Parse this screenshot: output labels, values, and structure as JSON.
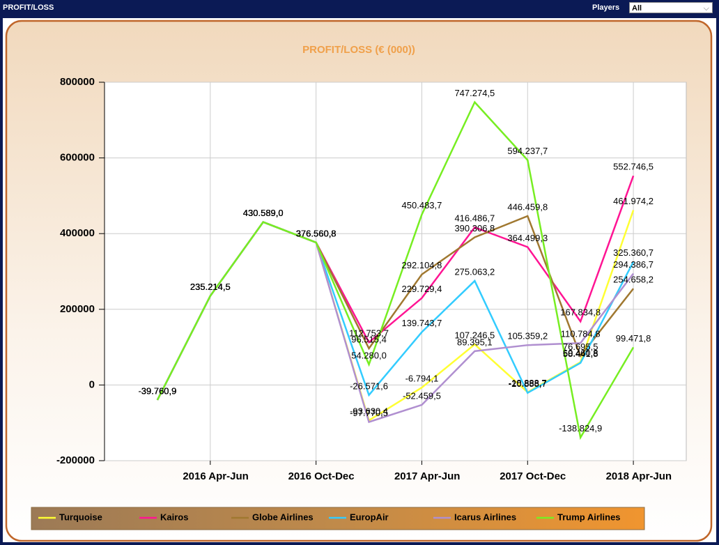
{
  "header": {
    "title": "PROFIT/LOSS",
    "filter_label": "Players",
    "filter_value": "All"
  },
  "chart_data": {
    "type": "line",
    "title": "PROFIT/LOSS (€ (000))",
    "categories": [
      null,
      "2016 Apr-Jun",
      null,
      "2016 Oct-Dec",
      null,
      "2017 Apr-Jun",
      null,
      "2017 Oct-Dec",
      null,
      "2018 Apr-Jun"
    ],
    "ylim": [
      -200000,
      800000
    ],
    "yticks": [
      -200000,
      0,
      200000,
      400000,
      600000,
      800000
    ],
    "grid": true,
    "legend": "bottom",
    "series": [
      {
        "name": "Turquoise",
        "color": "#ffff33",
        "values": [
          -39760.9,
          235214.5,
          430589.0,
          376560.8,
          -93630.4,
          -6794.1,
          107246.5,
          -18888.7,
          60460.8,
          461974.2
        ],
        "value_labels": [
          "-39.760,9",
          "235.214,5",
          "430.589,0",
          "376.560,8",
          "-93.630,4",
          "-6.794,1",
          "107.246,5",
          "-18.888,7",
          "60.460,8",
          "461.974,2"
        ]
      },
      {
        "name": "Kairos",
        "color": "#ff1493",
        "values": [
          -39760.9,
          235214.5,
          430589.0,
          376560.8,
          112753.7,
          229729.4,
          416486.7,
          364499.3,
          167834.8,
          552746.5
        ],
        "value_labels": [
          "-39.760,9",
          "235.214,5",
          "430.589,0",
          "376.560,8",
          "112.753,7",
          "229.729,4",
          "416.486,7",
          "364.499,3",
          "167.834,8",
          "552.746,5"
        ]
      },
      {
        "name": "Globe Airlines",
        "color": "#a07830",
        "values": [
          -39760.9,
          235214.5,
          430589.0,
          376560.8,
          96515.4,
          292104.8,
          390306.8,
          446459.8,
          76695.5,
          254658.2
        ],
        "value_labels": [
          "-39.760,9",
          "235.214,5",
          "430.589,0",
          "376.560,8",
          "96.515,4",
          "292.104,8",
          "390.306,8",
          "446.459,8",
          "76.695,5",
          "254.658,2"
        ]
      },
      {
        "name": "EuropAir",
        "color": "#33ccff",
        "values": [
          -39760.9,
          235214.5,
          430589.0,
          376560.8,
          -26571.6,
          139743.7,
          275063.2,
          -20888.7,
          58441.8,
          325360.7
        ],
        "value_labels": [
          "-39.760,9",
          "235.214,5",
          "430.589,0",
          "376.560,8",
          "-26.571,6",
          "139.743,7",
          "275.063,2",
          "-20.888,7",
          "58.441,8",
          "325.360,7"
        ]
      },
      {
        "name": "Icarus Airlines",
        "color": "#b08fd0",
        "values": [
          -39760.9,
          235214.5,
          430589.0,
          376560.8,
          -97770.5,
          -52459.5,
          89395.1,
          105359.2,
          110784.8,
          294386.7
        ],
        "value_labels": [
          "-39.760,9",
          "235.214,5",
          "430.589,0",
          "376.560,8",
          "-97.770,5",
          "-52.459,5",
          "89.395,1",
          "105.359,2",
          "110.784,8",
          "294.386,7"
        ]
      },
      {
        "name": "Trump Airlines",
        "color": "#77ee22",
        "values": [
          -39760.9,
          235214.5,
          430589.0,
          376560.8,
          54280.0,
          450483.7,
          747274.5,
          594237.7,
          -138824.9,
          99471.8
        ],
        "value_labels": [
          "-39.760,9",
          "235.214,5",
          "430.589,0",
          "376.560,8",
          "54.280,0",
          "450.483,7",
          "747.274,5",
          "594.237,7",
          "-138.824,9",
          "99.471,8"
        ]
      }
    ]
  }
}
